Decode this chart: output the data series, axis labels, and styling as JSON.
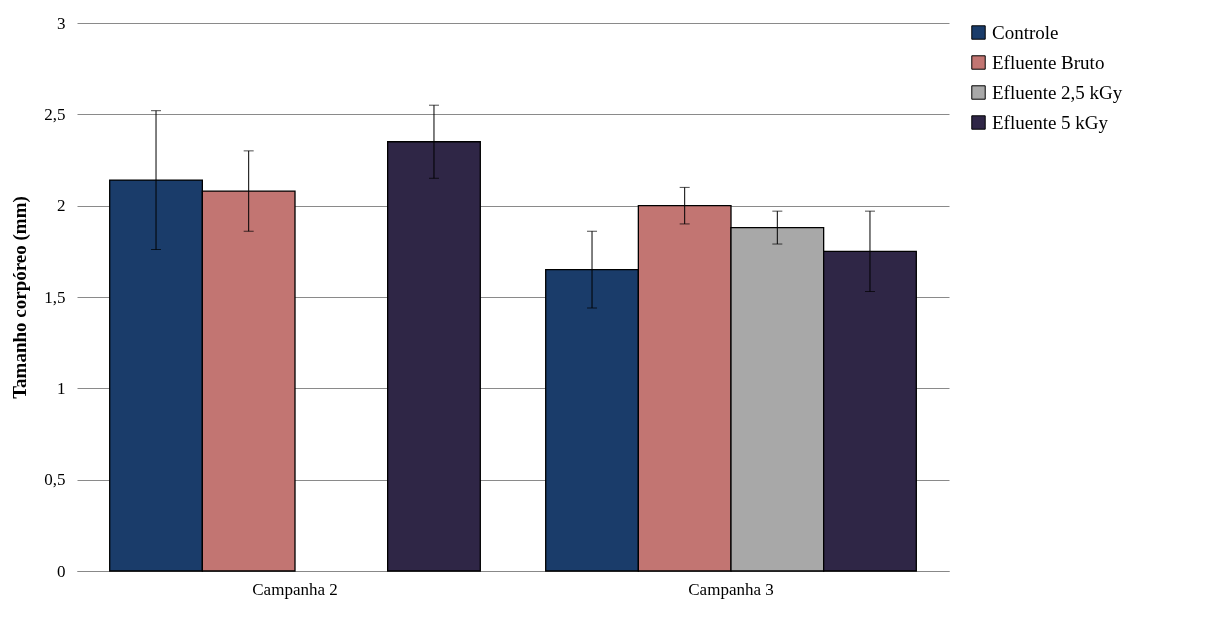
{
  "chart_data": {
    "type": "bar",
    "ylabel": "Tamanho corpóreo (mm)",
    "categories": [
      "Campanha 2",
      "Campanha 3"
    ],
    "series": [
      {
        "name": "Controle",
        "color": "#1a3c6a",
        "values": [
          2.14,
          1.65
        ],
        "errors": [
          0.38,
          0.21
        ]
      },
      {
        "name": "Efluente Bruto",
        "color": "#c27572",
        "values": [
          2.08,
          2.0
        ],
        "errors": [
          0.22,
          0.1
        ]
      },
      {
        "name": "Efluente 2,5 kGy",
        "color": "#a8a8a8",
        "values": [
          null,
          1.88
        ],
        "errors": [
          null,
          0.09
        ]
      },
      {
        "name": "Efluente 5 kGy",
        "color": "#2f2646",
        "values": [
          2.35,
          1.75
        ],
        "errors": [
          0.2,
          0.22
        ]
      }
    ],
    "ylim": [
      0,
      3
    ],
    "yticks": [
      0,
      {
        "value": 0.5,
        "label": "0,5"
      },
      1,
      {
        "value": 1.5,
        "label": "1,5"
      },
      2,
      {
        "value": 2.5,
        "label": "2,5"
      },
      3
    ],
    "grid": "y",
    "legend": "top right"
  }
}
